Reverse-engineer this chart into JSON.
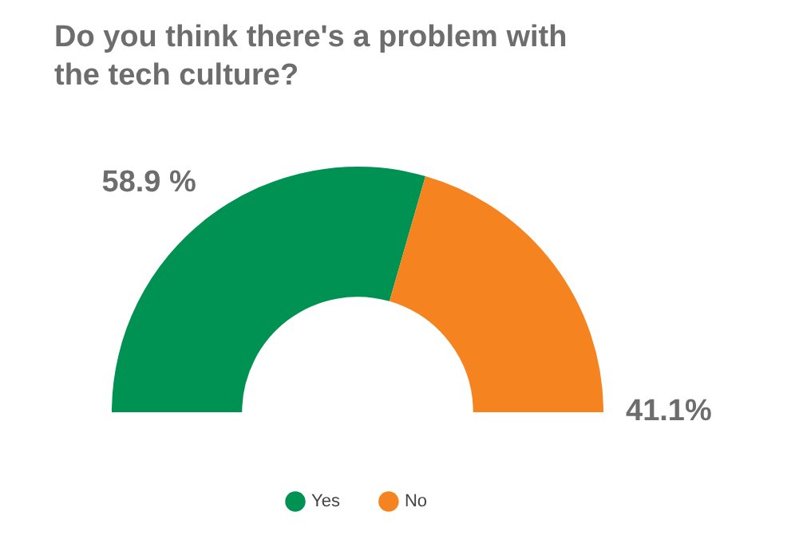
{
  "chart_data": {
    "type": "donut",
    "title": "Do you think there's a problem with the tech culture?",
    "categories": [
      "Yes",
      "No"
    ],
    "values": [
      58.9,
      41.1
    ],
    "value_labels": [
      "58.9 %",
      "41.1%"
    ],
    "colors": [
      "#009253",
      "#f58420"
    ],
    "legend": "bottom"
  }
}
